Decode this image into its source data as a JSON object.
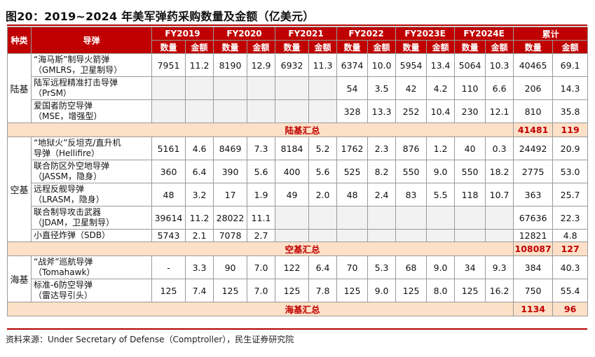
{
  "title": "图20：2019~2024 年美军弹药采购数量及金额（亿美元）",
  "headers": {
    "category": "种类",
    "missile": "导弹",
    "years": [
      "FY2019",
      "FY2020",
      "FY2021",
      "FY2022",
      "FY2023E",
      "FY2024E",
      "累计"
    ],
    "qty": "数量",
    "amount": "金额"
  },
  "groups": {
    "land": {
      "label": "陆基",
      "rows": [
        {
          "name": [
            "“海马斯”制导火箭弹",
            "（GMLRS，卫星制导）"
          ],
          "values": [
            "7951",
            "11.2",
            "8190",
            "12.9",
            "6932",
            "11.3",
            "6374",
            "10.0",
            "5954",
            "13.4",
            "5064",
            "10.3",
            "40465",
            "69.1"
          ]
        },
        {
          "name": [
            "陆军远程精准打击导弹",
            "（PrSM）"
          ],
          "values": [
            "",
            "",
            "",
            "",
            "",
            "",
            "54",
            "3.5",
            "42",
            "4.2",
            "110",
            "6.6",
            "206",
            "14.3"
          ]
        },
        {
          "name": [
            "爱国者防空导弹",
            "（MSE，增强型）"
          ],
          "values": [
            "",
            "",
            "",
            "",
            "",
            "",
            "328",
            "13.3",
            "252",
            "10.4",
            "230",
            "12.1",
            "810",
            "35.8"
          ]
        }
      ],
      "summary": {
        "label": "陆基汇总",
        "qty": "41481",
        "amount": "119"
      }
    },
    "air": {
      "label": "空基",
      "rows": [
        {
          "name": [
            "“地狱火”反坦克/直升机",
            "导弹（Hellifire）"
          ],
          "values": [
            "5161",
            "4.6",
            "8469",
            "7.3",
            "8184",
            "5.2",
            "1762",
            "2.3",
            "876",
            "1.2",
            "40",
            "0.3",
            "24492",
            "20.9"
          ]
        },
        {
          "name": [
            "联合防区外空地导弹",
            "（JASSM，隐身）"
          ],
          "values": [
            "360",
            "6.4",
            "390",
            "5.6",
            "400",
            "5.6",
            "525",
            "8.2",
            "550",
            "9.0",
            "550",
            "18.2",
            "2775",
            "53.0"
          ]
        },
        {
          "name": [
            "远程反舰导弹",
            "（LRASM，隐身）"
          ],
          "values": [
            "48",
            "3.2",
            "17",
            "1.9",
            "49",
            "2.0",
            "48",
            "2.4",
            "83",
            "5.5",
            "118",
            "10.7",
            "363",
            "25.7"
          ]
        },
        {
          "name": [
            "联合制导攻击武器",
            "（JDAM，卫星制导）"
          ],
          "values": [
            "39614",
            "11.2",
            "28022",
            "11.1",
            "",
            "",
            "",
            "",
            "",
            "",
            "",
            "",
            "67636",
            "22.3"
          ]
        },
        {
          "name": [
            "小直径炸弹（SDB）"
          ],
          "values": [
            "5743",
            "2.1",
            "7078",
            "2.7",
            "",
            "",
            "",
            "",
            "",
            "",
            "",
            "",
            "12821",
            "4.8"
          ]
        }
      ],
      "summary": {
        "label": "空基汇总",
        "qty": "108087",
        "amount": "127"
      }
    },
    "sea": {
      "label": "海基",
      "rows": [
        {
          "name": [
            "“战斧”巡航导弹",
            "（Tomahawk）"
          ],
          "values": [
            "-",
            "3.3",
            "90",
            "7.0",
            "122",
            "6.4",
            "70",
            "5.3",
            "68",
            "9.0",
            "34",
            "9.3",
            "384",
            "40.3"
          ]
        },
        {
          "name": [
            "标准-6防空导弹",
            "（雷达导引头）"
          ],
          "values": [
            "125",
            "7.4",
            "125",
            "7.0",
            "125",
            "7.8",
            "125",
            "9.0",
            "125",
            "8.0",
            "125",
            "16.2",
            "750",
            "55.4"
          ]
        }
      ],
      "summary": {
        "label": "海基汇总",
        "qty": "1134",
        "amount": "96"
      }
    }
  },
  "source": "资料来源：Under Secretary of Defense（Comptroller），民生证券研究院",
  "colors": {
    "header_bg": "#c00000",
    "summary_bg": "#fde0c7",
    "summary_text": "#c00000",
    "blank_cell": "#f2f2f2"
  }
}
